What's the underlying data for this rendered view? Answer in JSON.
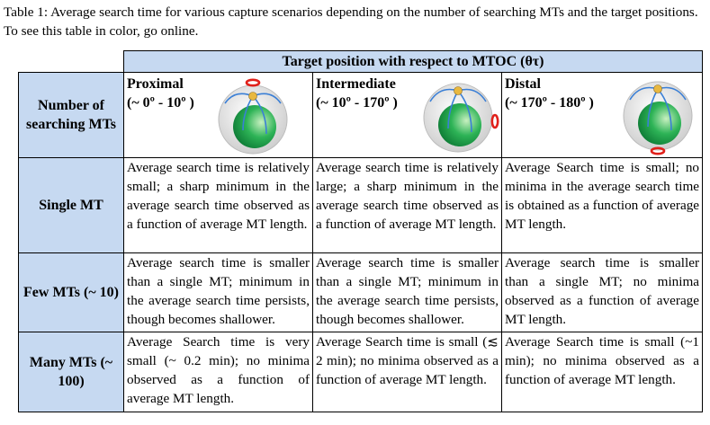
{
  "caption": "Table 1: Average search time for various capture scenarios depending on the number of searching MTs and the target positions. To see this table in color, go online.",
  "header": {
    "span_title": "Target position with respect to MTOC (θτ)",
    "row_header": "Number of searching MTs",
    "positions": [
      {
        "name": "Proximal",
        "range": "(~ 0º - 10º )",
        "diagram_icon": "cell-target-top-icon"
      },
      {
        "name": "Intermediate",
        "range": "(~ 10º - 170º )",
        "diagram_icon": "cell-target-side-icon"
      },
      {
        "name": "Distal",
        "range": "(~ 170º - 180º )",
        "diagram_icon": "cell-target-bottom-icon"
      }
    ]
  },
  "rows": [
    {
      "label": "Single MT",
      "cells": [
        "Average search time is relatively small; a sharp minimum in the average search time observed as a function of average MT length.",
        "Average search time is relatively large; a sharp minimum in the average search time observed as a function of average MT length.",
        "Average Search time is small; no minima in the average search time is obtained as a function of average MT length."
      ]
    },
    {
      "label": "Few MTs (~ 10)",
      "cells": [
        "Average search time is smaller than a single MT; minimum in the average search time persists, though becomes shallower.",
        "Average search time is smaller than a single MT; minimum in the average search time persists, though becomes shallower.",
        "Average search time is smaller than a single MT; no minima observed as a function of average MT length."
      ]
    },
    {
      "label": "Many MTs (~ 100)",
      "cells": [
        "Average Search time is very small (~ 0.2 min); no minima observed as a function of average MT length.",
        "Average Search time is small (≲ 2 min); no minima observed as a function of average MT length.",
        "Average Search time is small (~1 min); no minima observed as a function of average MT length."
      ]
    }
  ],
  "colors": {
    "header_fill": "#c6d9f1",
    "target_ring": "#e0201a",
    "nucleus": "#1fa84f",
    "microtubule": "#3a7fd6",
    "mtoc": "#e8b840"
  }
}
